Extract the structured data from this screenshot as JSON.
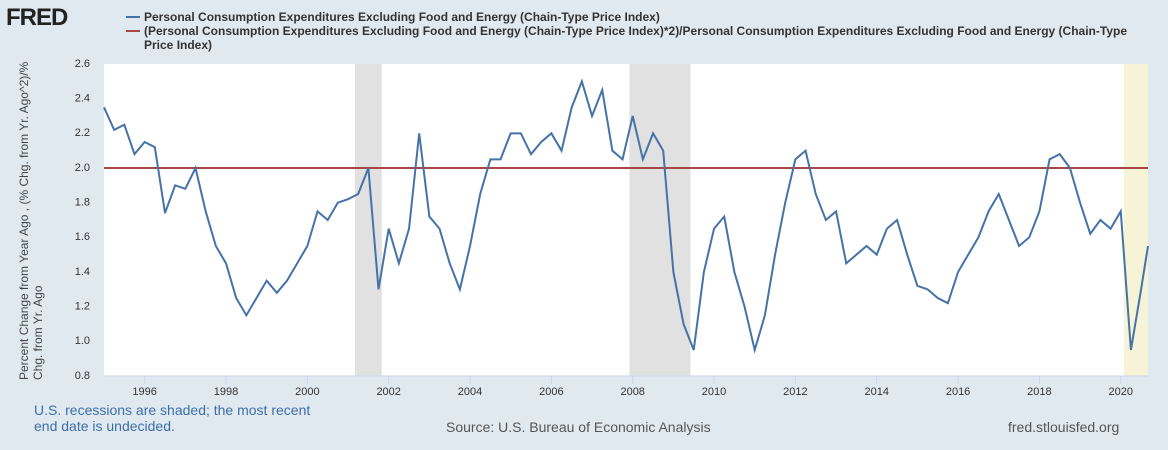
{
  "chart_data": {
    "type": "line",
    "logo": "FRED",
    "ylabel": "Percent Change from Year Ago , (% Chg. from Yr. Ago^2)/% Chg. from Yr. Ago",
    "note": "U.S. recessions are shaded; the most recent end date is undecided.",
    "source": "Source: U.S. Bureau of Economic Analysis",
    "site": "fred.stlouisfed.org",
    "x": [
      1995,
      1995.25,
      1995.5,
      1995.75,
      1996,
      1996.25,
      1996.5,
      1996.75,
      1997,
      1997.25,
      1997.5,
      1997.75,
      1998,
      1998.25,
      1998.5,
      1998.75,
      1999,
      1999.25,
      1999.5,
      1999.75,
      2000,
      2000.25,
      2000.5,
      2000.75,
      2001,
      2001.25,
      2001.5,
      2001.75,
      2002,
      2002.25,
      2002.5,
      2002.75,
      2003,
      2003.25,
      2003.5,
      2003.75,
      2004,
      2004.25,
      2004.5,
      2004.75,
      2005,
      2005.25,
      2005.5,
      2005.75,
      2006,
      2006.25,
      2006.5,
      2006.75,
      2007,
      2007.25,
      2007.5,
      2007.75,
      2008,
      2008.25,
      2008.5,
      2008.75,
      2009,
      2009.25,
      2009.5,
      2009.75,
      2010,
      2010.25,
      2010.5,
      2010.75,
      2011,
      2011.25,
      2011.5,
      2011.75,
      2012,
      2012.25,
      2012.5,
      2012.75,
      2013,
      2013.25,
      2013.5,
      2013.75,
      2014,
      2014.25,
      2014.5,
      2014.75,
      2015,
      2015.25,
      2015.5,
      2015.75,
      2016,
      2016.25,
      2016.5,
      2016.75,
      2017,
      2017.25,
      2017.5,
      2017.75,
      2018,
      2018.25,
      2018.5,
      2018.75,
      2019,
      2019.25,
      2019.5,
      2019.75,
      2020,
      2020.25,
      2020.5,
      2020.67
    ],
    "series": [
      {
        "name": "Personal Consumption Expenditures Excluding Food and Energy (Chain-Type Price Index)",
        "color": "#4572a7",
        "values": [
          2.35,
          2.22,
          2.25,
          2.08,
          2.15,
          2.12,
          1.74,
          1.9,
          1.88,
          2.0,
          1.75,
          1.55,
          1.45,
          1.25,
          1.15,
          1.25,
          1.35,
          1.28,
          1.35,
          1.45,
          1.55,
          1.75,
          1.7,
          1.8,
          1.82,
          1.85,
          2.0,
          1.3,
          1.65,
          1.45,
          1.65,
          2.2,
          1.72,
          1.65,
          1.45,
          1.3,
          1.55,
          1.85,
          2.05,
          2.05,
          2.2,
          2.2,
          2.08,
          2.15,
          2.2,
          2.1,
          2.35,
          2.5,
          2.3,
          2.45,
          2.1,
          2.05,
          2.3,
          2.05,
          2.2,
          2.1,
          1.4,
          1.1,
          0.95,
          1.4,
          1.65,
          1.72,
          1.4,
          1.2,
          0.95,
          1.15,
          1.5,
          1.8,
          2.05,
          2.1,
          1.85,
          1.7,
          1.75,
          1.45,
          1.5,
          1.55,
          1.5,
          1.65,
          1.7,
          1.5,
          1.32,
          1.3,
          1.25,
          1.22,
          1.4,
          1.5,
          1.6,
          1.75,
          1.85,
          1.7,
          1.55,
          1.6,
          1.75,
          2.05,
          2.08,
          2.0,
          1.8,
          1.62,
          1.7,
          1.65,
          1.75,
          0.95,
          1.3,
          1.55
        ]
      },
      {
        "name": "(Personal Consumption Expenditures Excluding Food and Energy (Chain-Type Price Index)*2)/Personal Consumption Expenditures Excluding Food and Energy (Chain-Type Price Index)",
        "color": "#aa4643",
        "x": [
          1995,
          2020.67
        ],
        "values": [
          2,
          2
        ]
      }
    ],
    "recessions": [
      {
        "start": 2001.17,
        "end": 2001.83,
        "color": "#e1e1e1"
      },
      {
        "start": 2007.92,
        "end": 2009.42,
        "color": "#e1e1e1"
      },
      {
        "start": 2020.08,
        "end": 2020.67,
        "color": "#f6f3d6"
      }
    ],
    "xlim": [
      1995,
      2020.67
    ],
    "xticks": [
      1996,
      1998,
      2000,
      2002,
      2004,
      2006,
      2008,
      2010,
      2012,
      2014,
      2016,
      2018,
      2020
    ],
    "ylim": [
      0.8,
      2.6
    ],
    "yticks": [
      0.8,
      {
        "value": 1,
        "label": "1.0"
      },
      1.2,
      1.4,
      1.6,
      1.8,
      {
        "value": 2,
        "label": "2.0"
      },
      2.2,
      2.4,
      2.6
    ],
    "grid": false
  }
}
